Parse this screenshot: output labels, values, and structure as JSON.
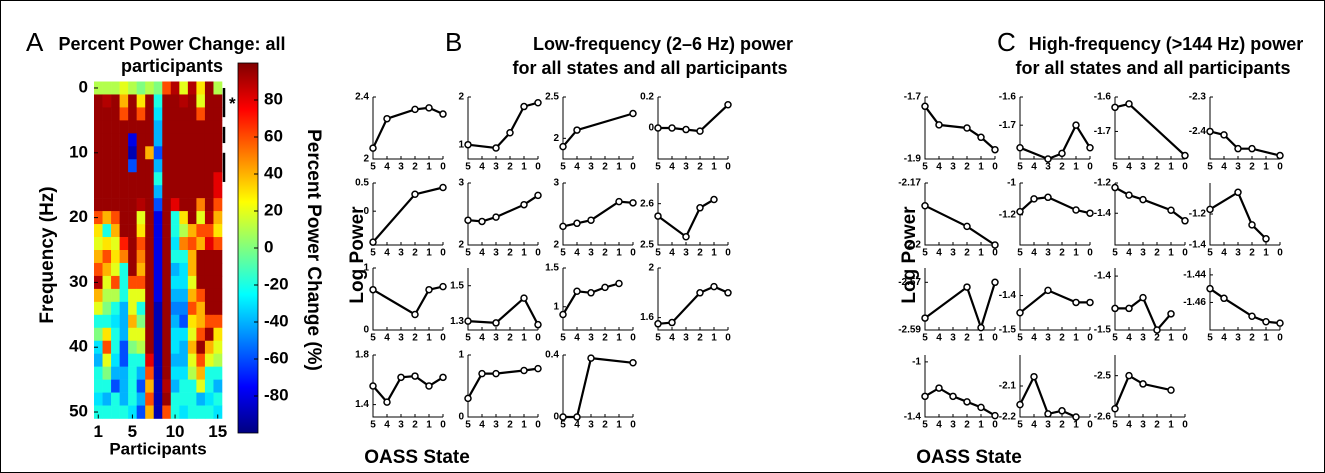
{
  "chart_data": [
    {
      "type": "heatmap",
      "panel": "A",
      "title": [
        "Percent Power Change: all",
        "participants"
      ],
      "xlabel": "Participants",
      "ylabel": "Frequency (Hz)",
      "x": [
        1,
        2,
        3,
        4,
        5,
        6,
        7,
        8,
        9,
        10,
        11,
        12,
        13,
        14,
        15
      ],
      "y": [
        0,
        2,
        4,
        6,
        8,
        10,
        12,
        14,
        16,
        18,
        20,
        22,
        24,
        26,
        28,
        30,
        32,
        34,
        36,
        38,
        40,
        42,
        44,
        46,
        48,
        50
      ],
      "values": [
        [
          10,
          10,
          10,
          20,
          10,
          0,
          10,
          0,
          60,
          90,
          20,
          90,
          30,
          95,
          10
        ],
        [
          95,
          90,
          95,
          40,
          95,
          30,
          95,
          -20,
          95,
          95,
          90,
          95,
          20,
          95,
          95
        ],
        [
          95,
          95,
          95,
          60,
          95,
          60,
          95,
          -30,
          95,
          95,
          95,
          95,
          60,
          95,
          95
        ],
        [
          95,
          95,
          95,
          95,
          95,
          95,
          95,
          -40,
          95,
          95,
          95,
          95,
          95,
          95,
          95
        ],
        [
          95,
          95,
          95,
          95,
          -80,
          95,
          95,
          -40,
          95,
          95,
          95,
          95,
          95,
          95,
          95
        ],
        [
          95,
          95,
          95,
          95,
          -90,
          95,
          40,
          -60,
          95,
          95,
          95,
          95,
          95,
          95,
          95
        ],
        [
          95,
          95,
          95,
          95,
          -60,
          95,
          95,
          -40,
          95,
          95,
          95,
          95,
          95,
          95,
          95
        ],
        [
          95,
          95,
          95,
          95,
          95,
          95,
          95,
          -20,
          95,
          95,
          95,
          95,
          95,
          95,
          80
        ],
        [
          95,
          95,
          95,
          95,
          95,
          95,
          95,
          -40,
          95,
          95,
          95,
          95,
          95,
          95,
          80
        ],
        [
          95,
          95,
          95,
          95,
          95,
          90,
          95,
          -60,
          95,
          80,
          95,
          95,
          50,
          95,
          60
        ],
        [
          60,
          40,
          60,
          95,
          95,
          20,
          95,
          -80,
          95,
          -20,
          30,
          95,
          20,
          90,
          40
        ],
        [
          30,
          -20,
          40,
          95,
          95,
          30,
          95,
          -80,
          95,
          -20,
          10,
          40,
          60,
          60,
          30
        ],
        [
          20,
          30,
          20,
          70,
          95,
          60,
          95,
          -80,
          95,
          -30,
          50,
          60,
          40,
          80,
          60
        ],
        [
          40,
          60,
          30,
          50,
          95,
          50,
          95,
          -80,
          95,
          -20,
          -20,
          40,
          95,
          95,
          95
        ],
        [
          60,
          40,
          20,
          -20,
          95,
          40,
          95,
          -80,
          95,
          -40,
          -30,
          40,
          95,
          95,
          95
        ],
        [
          90,
          20,
          60,
          -20,
          60,
          60,
          95,
          -80,
          95,
          -30,
          -30,
          20,
          95,
          95,
          95
        ],
        [
          40,
          10,
          10,
          -20,
          20,
          20,
          95,
          -80,
          95,
          -40,
          -40,
          40,
          60,
          95,
          95
        ],
        [
          20,
          0,
          -20,
          -40,
          20,
          -20,
          95,
          -90,
          95,
          -50,
          -50,
          60,
          40,
          95,
          95
        ],
        [
          -20,
          -20,
          -30,
          -40,
          40,
          0,
          95,
          -90,
          95,
          -40,
          -60,
          30,
          40,
          60,
          60
        ],
        [
          0,
          30,
          -20,
          -40,
          20,
          20,
          95,
          -90,
          95,
          -30,
          -30,
          20,
          60,
          95,
          30
        ],
        [
          -30,
          60,
          -20,
          -60,
          0,
          10,
          95,
          -90,
          95,
          -30,
          -40,
          40,
          95,
          40,
          20
        ],
        [
          -40,
          20,
          -30,
          -60,
          -20,
          -20,
          80,
          -90,
          95,
          -40,
          -40,
          20,
          60,
          20,
          10
        ],
        [
          -20,
          0,
          -40,
          -40,
          -20,
          -40,
          60,
          -90,
          95,
          -30,
          -30,
          10,
          40,
          -20,
          -20
        ],
        [
          -20,
          -20,
          -60,
          -40,
          -20,
          -60,
          40,
          -90,
          90,
          -40,
          -20,
          -20,
          20,
          -20,
          -40
        ],
        [
          -30,
          -40,
          -20,
          -40,
          -20,
          -40,
          60,
          -90,
          95,
          -20,
          -20,
          -20,
          -40,
          -30,
          -20
        ],
        [
          -20,
          -20,
          -20,
          -20,
          -30,
          -60,
          40,
          -90,
          60,
          -20,
          -30,
          -20,
          -20,
          -20,
          -30
        ]
      ],
      "xlim": [
        0.5,
        15.5
      ],
      "ylim": [
        -1,
        51
      ],
      "y_reversed": true,
      "xticks": [
        1,
        5,
        10,
        15
      ],
      "yticks": [
        0,
        10,
        20,
        30,
        40,
        50
      ],
      "colorbar": {
        "label": "Percent Power Change (%)",
        "lim": [
          -100,
          100
        ],
        "ticks": [
          -80,
          -60,
          -40,
          -20,
          0,
          20,
          40,
          60,
          80
        ],
        "colormap": "jet"
      },
      "significance": {
        "label": "*",
        "ranges": [
          [
            0,
            4.5
          ],
          [
            6,
            8.5
          ],
          [
            10,
            14.5
          ]
        ]
      }
    },
    {
      "type": "line_grid",
      "panel": "B",
      "title": [
        "Low-frequency (2–6 Hz) power",
        "for all states and all participants"
      ],
      "ylabel": "Log Power",
      "xlabel": "OASS State",
      "xlim": [
        5,
        0
      ],
      "xticks": [
        5,
        4,
        3,
        2,
        1,
        0
      ],
      "color": "#000000",
      "panels": [
        {
          "x": [
            5,
            4,
            2,
            1,
            0
          ],
          "values": [
            2.07,
            2.26,
            2.32,
            2.33,
            2.29
          ],
          "ylim": [
            2,
            2.4
          ],
          "yticks": [
            2,
            2.4
          ]
        },
        {
          "x": [
            5,
            3,
            2,
            1,
            0
          ],
          "values": [
            1.0,
            0.93,
            1.25,
            1.8,
            1.88
          ],
          "ylim": [
            0.7,
            2
          ],
          "yticks": [
            1,
            2
          ]
        },
        {
          "x": [
            5,
            4,
            0
          ],
          "values": [
            1.9,
            2.1,
            2.3
          ],
          "ylim": [
            1.75,
            2.5
          ],
          "yticks": [
            2,
            2.5
          ]
        },
        {
          "x": [
            5,
            4,
            3,
            2,
            0
          ],
          "values": [
            0,
            0,
            -0.01,
            -0.02,
            0.15
          ],
          "ylim": [
            -0.2,
            0.2
          ],
          "yticks": [
            0,
            0.2
          ]
        },
        {
          "x": [
            5,
            2,
            0
          ],
          "values": [
            -0.55,
            0.3,
            0.42
          ],
          "ylim": [
            -0.6,
            0.5
          ],
          "yticks": [
            0,
            0.5
          ]
        },
        {
          "x": [
            5,
            4,
            3,
            1,
            0
          ],
          "values": [
            2.4,
            2.38,
            2.45,
            2.65,
            2.8
          ],
          "ylim": [
            2,
            3
          ],
          "yticks": [
            2,
            3
          ]
        },
        {
          "x": [
            5,
            4,
            3,
            1,
            0
          ],
          "values": [
            2.3,
            2.35,
            2.4,
            2.7,
            2.68
          ],
          "ylim": [
            2,
            3
          ],
          "yticks": [
            2,
            3
          ]
        },
        {
          "x": [
            5,
            3,
            2,
            1
          ],
          "values": [
            2.57,
            2.52,
            2.59,
            2.61
          ],
          "ylim": [
            2.5,
            2.65
          ],
          "yticks": [
            2.5,
            2.6
          ]
        },
        {
          "x": [
            5,
            2,
            1,
            0
          ],
          "values": [
            0.65,
            0.25,
            0.65,
            0.7
          ],
          "ylim": [
            0,
            1
          ],
          "yticks": [
            0,
            1
          ]
        },
        {
          "x": [
            5,
            3,
            1,
            0
          ],
          "values": [
            1.3,
            1.29,
            1.43,
            1.28
          ],
          "ylim": [
            1.25,
            1.6
          ],
          "yticks": [
            1.3,
            1.5
          ]
        },
        {
          "x": [
            5,
            4,
            3,
            2,
            1
          ],
          "values": [
            0.9,
            1.2,
            1.18,
            1.25,
            1.3
          ],
          "ylim": [
            0.7,
            1.5
          ],
          "yticks": [
            1,
            1.5
          ]
        },
        {
          "x": [
            5,
            4,
            2,
            1,
            0
          ],
          "values": [
            1.55,
            1.56,
            1.8,
            1.85,
            1.8
          ],
          "ylim": [
            1.5,
            2
          ],
          "yticks": [
            1.6,
            2
          ]
        },
        {
          "x": [
            5,
            4,
            3,
            2,
            1,
            0
          ],
          "values": [
            1.55,
            1.42,
            1.62,
            1.63,
            1.55,
            1.62
          ],
          "ylim": [
            1.3,
            1.8
          ],
          "yticks": [
            1.4,
            1.8
          ]
        },
        {
          "x": [
            5,
            4,
            3,
            1,
            0
          ],
          "values": [
            0.3,
            0.7,
            0.7,
            0.75,
            0.78
          ],
          "ylim": [
            0,
            1
          ],
          "yticks": [
            0,
            1
          ]
        },
        {
          "x": [
            5,
            4,
            3,
            0
          ],
          "values": [
            0,
            0,
            0.38,
            0.35
          ],
          "ylim": [
            0,
            0.4
          ],
          "yticks": [
            0,
            0.4
          ]
        }
      ]
    },
    {
      "type": "line_grid",
      "panel": "C",
      "title": [
        "High-frequency (>144 Hz) power",
        "for all states and all participants"
      ],
      "ylabel": "Log Power",
      "xlabel": "OASS State",
      "xlim": [
        5,
        0
      ],
      "xticks": [
        5,
        4,
        3,
        2,
        1,
        0
      ],
      "color": "#000000",
      "panels": [
        {
          "x": [
            5,
            4,
            2,
            1,
            0
          ],
          "values": [
            -1.73,
            -1.79,
            -1.8,
            -1.83,
            -1.87
          ],
          "ylim": [
            -1.9,
            -1.7
          ],
          "yticks": [
            -1.9,
            -1.7
          ]
        },
        {
          "x": [
            5,
            3,
            2,
            1,
            0
          ],
          "values": [
            -1.78,
            -1.82,
            -1.8,
            -1.7,
            -1.78
          ],
          "ylim": [
            -1.82,
            -1.6
          ],
          "yticks": [
            -1.7,
            -1.6
          ]
        },
        {
          "x": [
            5,
            4,
            0
          ],
          "values": [
            -1.63,
            -1.62,
            -1.77
          ],
          "ylim": [
            -1.78,
            -1.6
          ],
          "yticks": [
            -1.7,
            -1.6
          ]
        },
        {
          "x": [
            5,
            4,
            3,
            2,
            0
          ],
          "values": [
            -2.4,
            -2.41,
            -2.45,
            -2.45,
            -2.47
          ],
          "ylim": [
            -2.48,
            -2.3
          ],
          "yticks": [
            -2.4,
            -2.3
          ]
        },
        {
          "x": [
            5,
            2,
            0
          ],
          "values": [
            -2.181,
            -2.191,
            -2.2
          ],
          "ylim": [
            -2.2,
            -2.17
          ],
          "yticks": [
            -2.2,
            -2.17
          ]
        },
        {
          "x": [
            5,
            4,
            3,
            1,
            0
          ],
          "values": [
            -1.18,
            -1.1,
            -1.09,
            -1.17,
            -1.19
          ],
          "ylim": [
            -1.39,
            -1
          ],
          "yticks": [
            -1.2,
            -1
          ]
        },
        {
          "x": [
            5,
            4,
            3,
            1,
            0
          ],
          "values": [
            -1.23,
            -1.28,
            -1.31,
            -1.38,
            -1.45
          ],
          "ylim": [
            -1.61,
            -1.2
          ],
          "yticks": [
            -1.4,
            -1.2
          ]
        },
        {
          "x": [
            5,
            3,
            2,
            1
          ],
          "values": [
            -1.17,
            -1.06,
            -1.27,
            -1.36
          ],
          "ylim": [
            -1.4,
            -1
          ],
          "yticks": [
            -1.4,
            -1.2
          ]
        },
        {
          "x": [
            5,
            2,
            1,
            0
          ],
          "values": [
            -2.585,
            -2.572,
            -2.589,
            -2.57
          ],
          "ylim": [
            -2.59,
            -2.564
          ],
          "yticks": [
            -2.59,
            -2.57
          ]
        },
        {
          "x": [
            5,
            3,
            1,
            0
          ],
          "values": [
            -1.45,
            -1.385,
            -1.42,
            -1.42
          ],
          "ylim": [
            -1.5,
            -1.32
          ],
          "yticks": [
            -1.5,
            -1.4
          ]
        },
        {
          "x": [
            5,
            4,
            3,
            2,
            1
          ],
          "values": [
            -1.46,
            -1.46,
            -1.44,
            -1.5,
            -1.47
          ],
          "ylim": [
            -1.5,
            -1.385
          ],
          "yticks": [
            -1.5,
            -1.4
          ]
        },
        {
          "x": [
            5,
            4,
            2,
            1,
            0
          ],
          "values": [
            -1.45,
            -1.457,
            -1.47,
            -1.474,
            -1.475
          ],
          "ylim": [
            -1.48,
            -1.435
          ],
          "yticks": [
            -1.46,
            -1.44
          ]
        },
        {
          "x": [
            5,
            4,
            3,
            2,
            1,
            0
          ],
          "values": [
            -1.25,
            -1.19,
            -1.25,
            -1.29,
            -1.33,
            -1.39
          ],
          "ylim": [
            -1.4,
            -0.95
          ],
          "yticks": [
            -1.4,
            -1
          ]
        },
        {
          "x": [
            5,
            4,
            3,
            2,
            1
          ],
          "values": [
            -2.16,
            -2.07,
            -2.19,
            -2.18,
            -2.2
          ],
          "ylim": [
            -2.2,
            -2
          ],
          "yticks": [
            -2.2,
            -2.1
          ]
        },
        {
          "x": [
            5,
            4,
            3,
            1
          ],
          "values": [
            -2.58,
            -2.5,
            -2.52,
            -2.535
          ],
          "ylim": [
            -2.6,
            -2.45
          ],
          "yticks": [
            -2.6,
            -2.5
          ]
        }
      ]
    }
  ]
}
